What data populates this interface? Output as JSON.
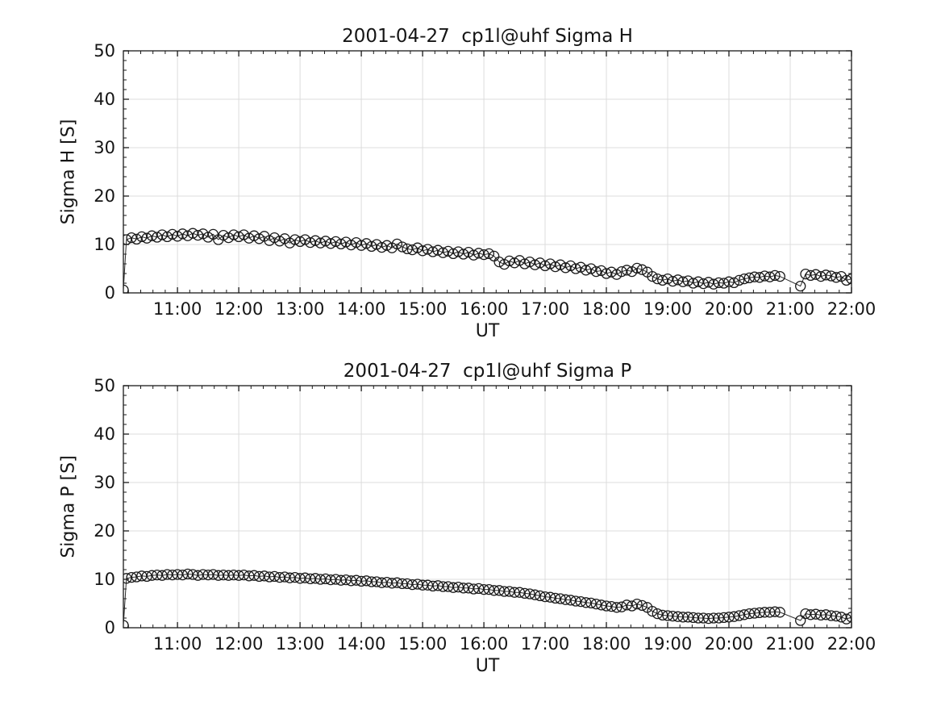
{
  "figure": {
    "background": "#ffffff",
    "axis_color": "#1a1a1a",
    "grid_color": "#dcdcdc",
    "line_color": "#2b2b2b",
    "marker_edge_color": "#1a1a1a",
    "text_color": "#151515"
  },
  "chart_data": [
    {
      "type": "line",
      "title": "2001-04-27  cp1l@uhf Sigma H",
      "xlabel": "UT",
      "ylabel": "Sigma H [S]",
      "xlim": [
        10.117,
        22.0
      ],
      "ylim": [
        0,
        50
      ],
      "grid": true,
      "legend": "none",
      "marker": "open-circle",
      "x_minor_step": 0.2,
      "y_minor_step": 2,
      "xticks": [
        {
          "value": 11,
          "label": "11:00"
        },
        {
          "value": 12,
          "label": "12:00"
        },
        {
          "value": 13,
          "label": "13:00"
        },
        {
          "value": 14,
          "label": "14:00"
        },
        {
          "value": 15,
          "label": "15:00"
        },
        {
          "value": 16,
          "label": "16:00"
        },
        {
          "value": 17,
          "label": "17:00"
        },
        {
          "value": 18,
          "label": "18:00"
        },
        {
          "value": 19,
          "label": "19:00"
        },
        {
          "value": 20,
          "label": "20:00"
        },
        {
          "value": 21,
          "label": "21:00"
        },
        {
          "value": 22,
          "label": "22:00"
        }
      ],
      "yticks": [
        0,
        10,
        20,
        30,
        40,
        50
      ],
      "points": [
        [
          10.117,
          0.6
        ],
        [
          10.167,
          11.0
        ],
        [
          10.25,
          11.4
        ],
        [
          10.333,
          11.1
        ],
        [
          10.417,
          11.6
        ],
        [
          10.5,
          11.3
        ],
        [
          10.583,
          11.8
        ],
        [
          10.667,
          11.5
        ],
        [
          10.75,
          12.0
        ],
        [
          10.833,
          11.6
        ],
        [
          10.917,
          12.1
        ],
        [
          11.0,
          11.7
        ],
        [
          11.083,
          12.2
        ],
        [
          11.167,
          11.8
        ],
        [
          11.25,
          12.3
        ],
        [
          11.333,
          11.9
        ],
        [
          11.417,
          12.2
        ],
        [
          11.5,
          11.5
        ],
        [
          11.583,
          12.1
        ],
        [
          11.667,
          11.0
        ],
        [
          11.75,
          11.9
        ],
        [
          11.833,
          11.4
        ],
        [
          11.917,
          12.0
        ],
        [
          12.0,
          11.6
        ],
        [
          12.083,
          12.0
        ],
        [
          12.167,
          11.3
        ],
        [
          12.25,
          11.8
        ],
        [
          12.333,
          11.2
        ],
        [
          12.417,
          11.7
        ],
        [
          12.5,
          10.8
        ],
        [
          12.583,
          11.4
        ],
        [
          12.667,
          10.7
        ],
        [
          12.75,
          11.2
        ],
        [
          12.833,
          10.3
        ],
        [
          12.917,
          11.0
        ],
        [
          13.0,
          10.6
        ],
        [
          13.083,
          11.0
        ],
        [
          13.167,
          10.4
        ],
        [
          13.25,
          10.8
        ],
        [
          13.333,
          10.3
        ],
        [
          13.417,
          10.7
        ],
        [
          13.5,
          10.2
        ],
        [
          13.583,
          10.6
        ],
        [
          13.667,
          10.1
        ],
        [
          13.75,
          10.5
        ],
        [
          13.833,
          9.9
        ],
        [
          13.917,
          10.4
        ],
        [
          14.0,
          9.8
        ],
        [
          14.083,
          10.2
        ],
        [
          14.167,
          9.6
        ],
        [
          14.25,
          10.0
        ],
        [
          14.333,
          9.4
        ],
        [
          14.417,
          9.8
        ],
        [
          14.5,
          9.3
        ],
        [
          14.583,
          10.1
        ],
        [
          14.667,
          9.5
        ],
        [
          14.75,
          9.1
        ],
        [
          14.833,
          8.9
        ],
        [
          14.917,
          9.3
        ],
        [
          15.0,
          8.7
        ],
        [
          15.083,
          9.0
        ],
        [
          15.167,
          8.5
        ],
        [
          15.25,
          8.8
        ],
        [
          15.333,
          8.3
        ],
        [
          15.417,
          8.6
        ],
        [
          15.5,
          8.1
        ],
        [
          15.583,
          8.5
        ],
        [
          15.667,
          8.0
        ],
        [
          15.75,
          8.4
        ],
        [
          15.833,
          7.8
        ],
        [
          15.917,
          8.2
        ],
        [
          16.0,
          7.9
        ],
        [
          16.083,
          8.1
        ],
        [
          16.167,
          7.6
        ],
        [
          16.25,
          6.4
        ],
        [
          16.333,
          5.9
        ],
        [
          16.417,
          6.6
        ],
        [
          16.5,
          6.2
        ],
        [
          16.583,
          6.7
        ],
        [
          16.667,
          6.0
        ],
        [
          16.75,
          6.4
        ],
        [
          16.833,
          5.8
        ],
        [
          16.917,
          6.2
        ],
        [
          17.0,
          5.6
        ],
        [
          17.083,
          6.0
        ],
        [
          17.167,
          5.4
        ],
        [
          17.25,
          5.8
        ],
        [
          17.333,
          5.2
        ],
        [
          17.417,
          5.6
        ],
        [
          17.5,
          5.0
        ],
        [
          17.583,
          5.3
        ],
        [
          17.667,
          4.7
        ],
        [
          17.75,
          5.0
        ],
        [
          17.833,
          4.4
        ],
        [
          17.917,
          4.6
        ],
        [
          18.0,
          4.0
        ],
        [
          18.083,
          4.3
        ],
        [
          18.167,
          3.8
        ],
        [
          18.25,
          4.4
        ],
        [
          18.333,
          4.7
        ],
        [
          18.417,
          4.4
        ],
        [
          18.5,
          5.1
        ],
        [
          18.583,
          4.8
        ],
        [
          18.667,
          4.3
        ],
        [
          18.75,
          3.4
        ],
        [
          18.833,
          2.9
        ],
        [
          18.917,
          2.6
        ],
        [
          19.0,
          2.9
        ],
        [
          19.083,
          2.4
        ],
        [
          19.167,
          2.7
        ],
        [
          19.25,
          2.3
        ],
        [
          19.333,
          2.5
        ],
        [
          19.417,
          2.0
        ],
        [
          19.5,
          2.3
        ],
        [
          19.583,
          1.9
        ],
        [
          19.667,
          2.2
        ],
        [
          19.75,
          1.8
        ],
        [
          19.833,
          2.1
        ],
        [
          19.917,
          2.0
        ],
        [
          20.0,
          2.3
        ],
        [
          20.083,
          2.1
        ],
        [
          20.167,
          2.6
        ],
        [
          20.25,
          2.9
        ],
        [
          20.333,
          3.1
        ],
        [
          20.417,
          3.3
        ],
        [
          20.5,
          3.2
        ],
        [
          20.583,
          3.5
        ],
        [
          20.667,
          3.3
        ],
        [
          20.75,
          3.6
        ],
        [
          20.833,
          3.4
        ],
        [
          21.167,
          1.4
        ],
        [
          21.25,
          3.9
        ],
        [
          21.333,
          3.6
        ],
        [
          21.417,
          3.8
        ],
        [
          21.5,
          3.4
        ],
        [
          21.583,
          3.7
        ],
        [
          21.667,
          3.5
        ],
        [
          21.75,
          3.2
        ],
        [
          21.833,
          3.4
        ],
        [
          21.917,
          2.6
        ],
        [
          22.0,
          2.9
        ]
      ]
    },
    {
      "type": "line",
      "title": "2001-04-27  cp1l@uhf Sigma P",
      "xlabel": "UT",
      "ylabel": "Sigma P [S]",
      "xlim": [
        10.117,
        22.0
      ],
      "ylim": [
        0,
        50
      ],
      "grid": true,
      "legend": "none",
      "marker": "open-circle",
      "x_minor_step": 0.2,
      "y_minor_step": 2,
      "xticks": [
        {
          "value": 11,
          "label": "11:00"
        },
        {
          "value": 12,
          "label": "12:00"
        },
        {
          "value": 13,
          "label": "13:00"
        },
        {
          "value": 14,
          "label": "14:00"
        },
        {
          "value": 15,
          "label": "15:00"
        },
        {
          "value": 16,
          "label": "16:00"
        },
        {
          "value": 17,
          "label": "17:00"
        },
        {
          "value": 18,
          "label": "18:00"
        },
        {
          "value": 19,
          "label": "19:00"
        },
        {
          "value": 20,
          "label": "20:00"
        },
        {
          "value": 21,
          "label": "21:00"
        },
        {
          "value": 22,
          "label": "22:00"
        }
      ],
      "yticks": [
        0,
        10,
        20,
        30,
        40,
        50
      ],
      "points": [
        [
          10.117,
          0.5
        ],
        [
          10.167,
          10.2
        ],
        [
          10.25,
          10.4
        ],
        [
          10.333,
          10.5
        ],
        [
          10.417,
          10.7
        ],
        [
          10.5,
          10.6
        ],
        [
          10.583,
          10.8
        ],
        [
          10.667,
          10.9
        ],
        [
          10.75,
          10.8
        ],
        [
          10.833,
          11.0
        ],
        [
          10.917,
          10.9
        ],
        [
          11.0,
          11.0
        ],
        [
          11.083,
          10.9
        ],
        [
          11.167,
          11.1
        ],
        [
          11.25,
          11.0
        ],
        [
          11.333,
          10.8
        ],
        [
          11.417,
          11.0
        ],
        [
          11.5,
          10.9
        ],
        [
          11.583,
          11.0
        ],
        [
          11.667,
          10.8
        ],
        [
          11.75,
          10.9
        ],
        [
          11.833,
          10.8
        ],
        [
          11.917,
          10.9
        ],
        [
          12.0,
          10.8
        ],
        [
          12.083,
          10.9
        ],
        [
          12.167,
          10.7
        ],
        [
          12.25,
          10.8
        ],
        [
          12.333,
          10.6
        ],
        [
          12.417,
          10.7
        ],
        [
          12.5,
          10.5
        ],
        [
          12.583,
          10.6
        ],
        [
          12.667,
          10.4
        ],
        [
          12.75,
          10.5
        ],
        [
          12.833,
          10.3
        ],
        [
          12.917,
          10.4
        ],
        [
          13.0,
          10.2
        ],
        [
          13.083,
          10.3
        ],
        [
          13.167,
          10.1
        ],
        [
          13.25,
          10.2
        ],
        [
          13.333,
          10.0
        ],
        [
          13.417,
          10.1
        ],
        [
          13.5,
          9.9
        ],
        [
          13.583,
          10.0
        ],
        [
          13.667,
          9.8
        ],
        [
          13.75,
          9.9
        ],
        [
          13.833,
          9.7
        ],
        [
          13.917,
          9.8
        ],
        [
          14.0,
          9.6
        ],
        [
          14.083,
          9.7
        ],
        [
          14.167,
          9.5
        ],
        [
          14.25,
          9.5
        ],
        [
          14.333,
          9.3
        ],
        [
          14.417,
          9.4
        ],
        [
          14.5,
          9.2
        ],
        [
          14.583,
          9.3
        ],
        [
          14.667,
          9.1
        ],
        [
          14.75,
          9.1
        ],
        [
          14.833,
          8.9
        ],
        [
          14.917,
          9.0
        ],
        [
          15.0,
          8.8
        ],
        [
          15.083,
          8.8
        ],
        [
          15.167,
          8.6
        ],
        [
          15.25,
          8.7
        ],
        [
          15.333,
          8.5
        ],
        [
          15.417,
          8.5
        ],
        [
          15.5,
          8.3
        ],
        [
          15.583,
          8.4
        ],
        [
          15.667,
          8.2
        ],
        [
          15.75,
          8.2
        ],
        [
          15.833,
          8.0
        ],
        [
          15.917,
          8.1
        ],
        [
          16.0,
          7.9
        ],
        [
          16.083,
          7.9
        ],
        [
          16.167,
          7.7
        ],
        [
          16.25,
          7.7
        ],
        [
          16.333,
          7.5
        ],
        [
          16.417,
          7.5
        ],
        [
          16.5,
          7.3
        ],
        [
          16.583,
          7.3
        ],
        [
          16.667,
          7.1
        ],
        [
          16.75,
          7.0
        ],
        [
          16.833,
          6.8
        ],
        [
          16.917,
          6.6
        ],
        [
          17.0,
          6.4
        ],
        [
          17.083,
          6.3
        ],
        [
          17.167,
          6.1
        ],
        [
          17.25,
          6.0
        ],
        [
          17.333,
          5.8
        ],
        [
          17.417,
          5.7
        ],
        [
          17.5,
          5.5
        ],
        [
          17.583,
          5.4
        ],
        [
          17.667,
          5.2
        ],
        [
          17.75,
          5.1
        ],
        [
          17.833,
          4.9
        ],
        [
          17.917,
          4.7
        ],
        [
          18.0,
          4.5
        ],
        [
          18.083,
          4.4
        ],
        [
          18.167,
          4.2
        ],
        [
          18.25,
          4.3
        ],
        [
          18.333,
          4.7
        ],
        [
          18.417,
          4.5
        ],
        [
          18.5,
          4.9
        ],
        [
          18.583,
          4.6
        ],
        [
          18.667,
          4.2
        ],
        [
          18.75,
          3.4
        ],
        [
          18.833,
          2.9
        ],
        [
          18.917,
          2.6
        ],
        [
          19.0,
          2.5
        ],
        [
          19.083,
          2.4
        ],
        [
          19.167,
          2.3
        ],
        [
          19.25,
          2.2
        ],
        [
          19.333,
          2.2
        ],
        [
          19.417,
          2.1
        ],
        [
          19.5,
          2.0
        ],
        [
          19.583,
          2.0
        ],
        [
          19.667,
          1.9
        ],
        [
          19.75,
          2.0
        ],
        [
          19.833,
          2.0
        ],
        [
          19.917,
          2.1
        ],
        [
          20.0,
          2.2
        ],
        [
          20.083,
          2.3
        ],
        [
          20.167,
          2.5
        ],
        [
          20.25,
          2.7
        ],
        [
          20.333,
          2.9
        ],
        [
          20.417,
          3.0
        ],
        [
          20.5,
          3.1
        ],
        [
          20.583,
          3.2
        ],
        [
          20.667,
          3.2
        ],
        [
          20.75,
          3.3
        ],
        [
          20.833,
          3.2
        ],
        [
          21.167,
          1.5
        ],
        [
          21.25,
          2.9
        ],
        [
          21.333,
          2.7
        ],
        [
          21.417,
          2.8
        ],
        [
          21.5,
          2.6
        ],
        [
          21.583,
          2.7
        ],
        [
          21.667,
          2.5
        ],
        [
          21.75,
          2.4
        ],
        [
          21.833,
          2.2
        ],
        [
          21.917,
          1.8
        ],
        [
          22.0,
          2.2
        ]
      ]
    }
  ]
}
